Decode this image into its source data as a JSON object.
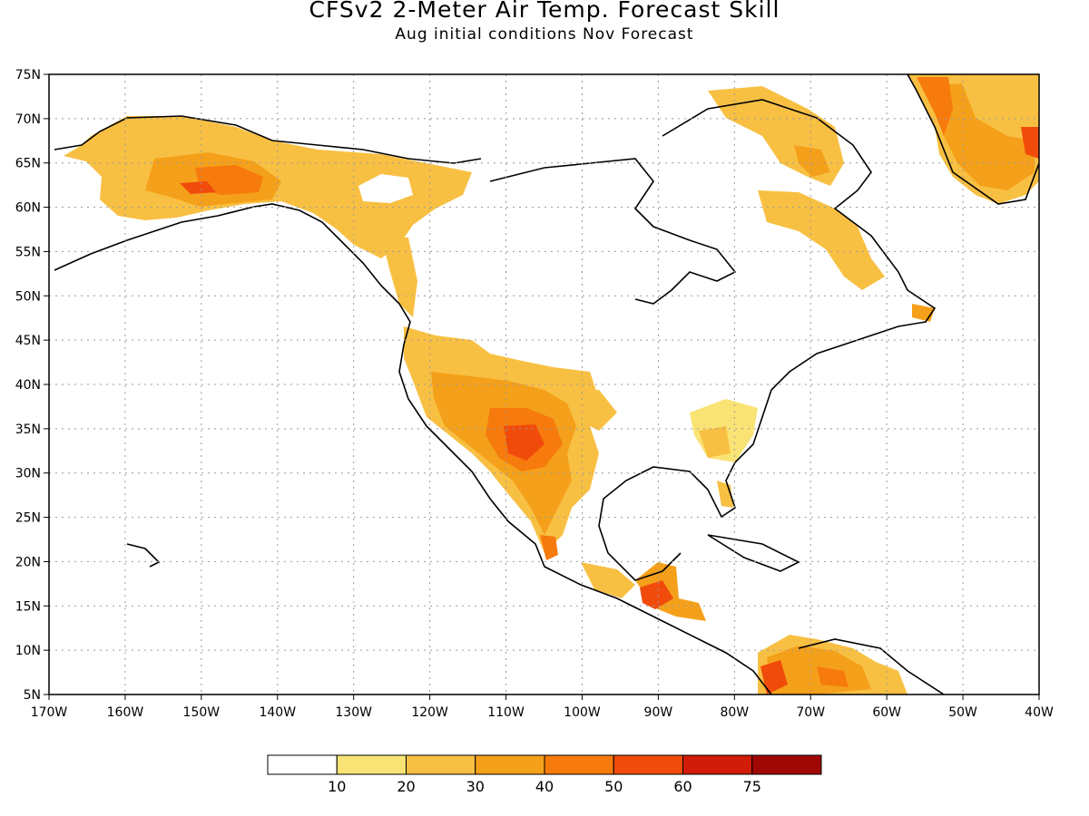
{
  "header": {
    "title": "CFSv2 2-Meter Air Temp. Forecast Skill",
    "subtitle": "Aug initial conditions  Nov Forecast"
  },
  "map": {
    "lon_range": [
      -170,
      -40
    ],
    "lat_range": [
      5,
      75
    ],
    "lon_labels": [
      "170W",
      "160W",
      "150W",
      "140W",
      "130W",
      "120W",
      "110W",
      "100W",
      "90W",
      "80W",
      "70W",
      "60W",
      "50W",
      "40W"
    ],
    "lat_labels": [
      "75N",
      "70N",
      "65N",
      "60N",
      "55N",
      "50N",
      "45N",
      "40N",
      "35N",
      "30N",
      "25N",
      "20N",
      "15N",
      "10N",
      "5N"
    ],
    "grid": "dotted"
  },
  "colorbar": {
    "labels": [
      "10",
      "20",
      "30",
      "40",
      "50",
      "60",
      "75"
    ],
    "colors": [
      "#ffffff",
      "#fae375",
      "#f8c043",
      "#f5a01a",
      "#f77a0c",
      "#f04b0b",
      "#d01c08",
      "#a00806"
    ]
  },
  "regions_colors": {
    "c10": "#fae375",
    "c20": "#f8c043",
    "c30": "#f5a01a",
    "c40": "#f77a0c",
    "c50": "#f04b0b",
    "c60": "#d01c08",
    "c75": "#a00806"
  }
}
